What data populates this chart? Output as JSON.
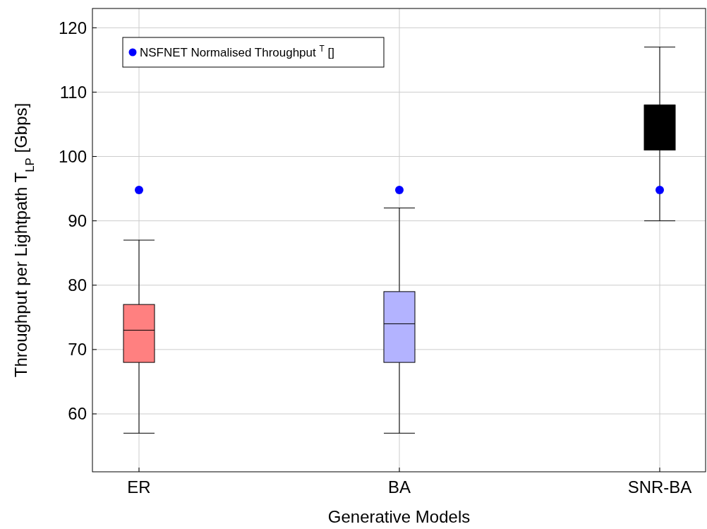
{
  "chart_data": {
    "type": "box",
    "xlabel": "Generative Models",
    "ylabel": "Throughput per Lightpath T$_{LP}$ [Gbps]",
    "categories": [
      "ER",
      "BA",
      "SNR-BA"
    ],
    "boxes": [
      {
        "low": 57,
        "q1": 68,
        "median": 73,
        "q3": 77,
        "high": 87
      },
      {
        "low": 57,
        "q1": 68,
        "median": 74,
        "q3": 79,
        "high": 92
      },
      {
        "low": 90,
        "q1": 101,
        "median": 108,
        "q3": 108,
        "high": 117
      }
    ],
    "colors": [
      "#ff8080",
      "#b3b3ff",
      "#000000"
    ],
    "series": [
      {
        "type": "scatter",
        "name": "NSFNET Normalised Throughput $^{T}$[]",
        "color": "#0000ff",
        "x": [
          "ER",
          "BA",
          "SNR-BA"
        ],
        "values": [
          94.8,
          94.8,
          94.8
        ]
      }
    ],
    "ylim": [
      51,
      123
    ],
    "yticks": [
      60,
      70,
      80,
      90,
      100,
      110,
      120
    ],
    "grid": true,
    "legend": "top left",
    "marker": "circle"
  }
}
